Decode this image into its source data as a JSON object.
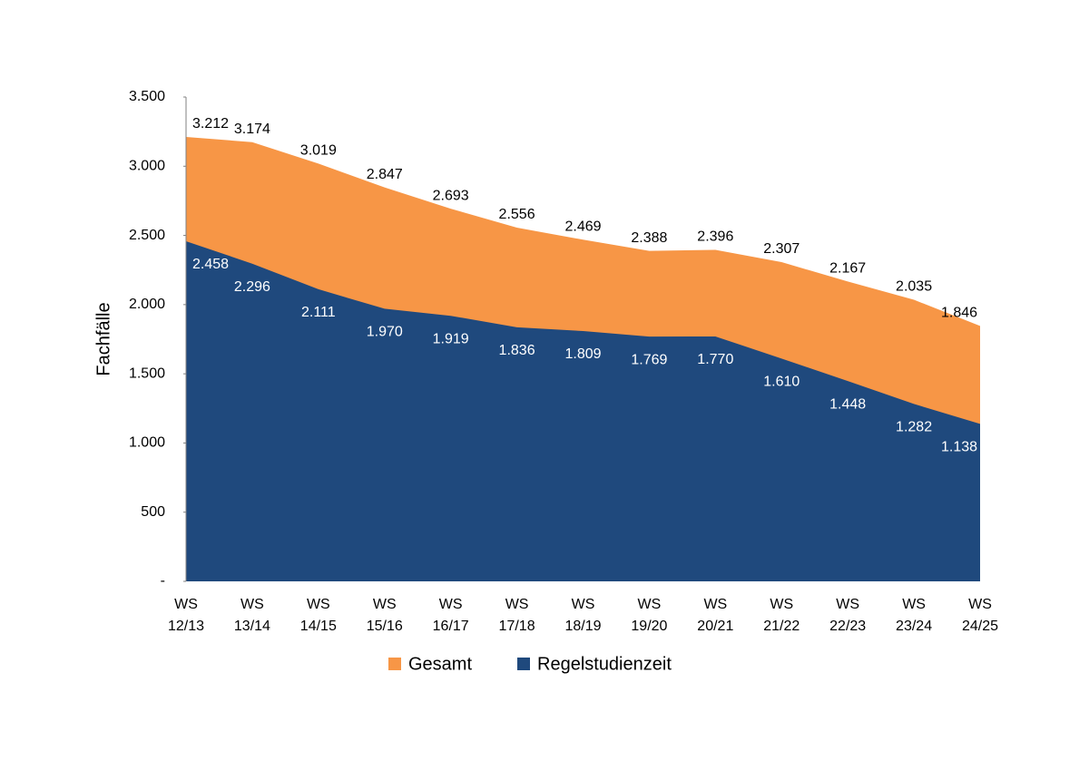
{
  "chart_data": {
    "type": "area",
    "ylabel": "Fachfälle",
    "categories": [
      "WS 12/13",
      "WS 13/14",
      "WS 14/15",
      "WS 15/16",
      "WS 16/17",
      "WS 17/18",
      "WS 18/19",
      "WS 19/20",
      "WS 20/21",
      "WS 21/22",
      "WS 22/23",
      "WS 23/24",
      "WS 24/25"
    ],
    "series": [
      {
        "name": "Gesamt",
        "color": "#f79646",
        "values": [
          3212,
          3174,
          3019,
          2847,
          2693,
          2556,
          2469,
          2388,
          2396,
          2307,
          2167,
          2035,
          1846
        ],
        "value_labels": [
          "3.212",
          "3.174",
          "3.019",
          "2.847",
          "2.693",
          "2.556",
          "2.469",
          "2.388",
          "2.396",
          "2.307",
          "2.167",
          "2.035",
          "1.846"
        ]
      },
      {
        "name": "Regelstudienzeit",
        "color": "#1f497d",
        "values": [
          2458,
          2296,
          2111,
          1970,
          1919,
          1836,
          1809,
          1769,
          1770,
          1610,
          1448,
          1282,
          1138
        ],
        "value_labels": [
          "2.458",
          "2.296",
          "2.111",
          "1.970",
          "1.919",
          "1.836",
          "1.809",
          "1.769",
          "1.770",
          "1.610",
          "1.448",
          "1.282",
          "1.138"
        ]
      }
    ],
    "ylim": [
      0,
      3500
    ],
    "yticks": [
      {
        "value": 0,
        "label": "-"
      },
      500,
      {
        "value": 1000,
        "label": "1.000"
      },
      {
        "value": 1500,
        "label": "1.500"
      },
      {
        "value": 2000,
        "label": "2.000"
      },
      {
        "value": 2500,
        "label": "2.500"
      },
      {
        "value": 3000,
        "label": "3.000"
      },
      {
        "value": 3500,
        "label": "3.500"
      }
    ],
    "legend": "bottom",
    "grid": false
  }
}
